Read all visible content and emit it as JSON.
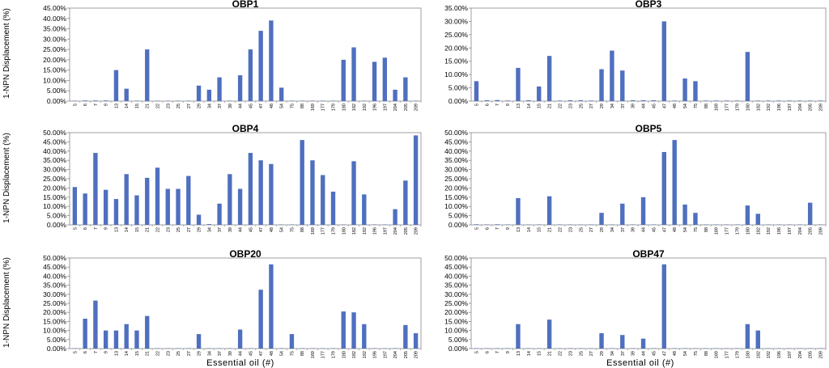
{
  "figure": {
    "ylabel": "1-NPN Displacement (%)",
    "xlabel": "Essential oil (#)",
    "bar_color": "#4F6FBF"
  },
  "chart_data": [
    {
      "type": "bar",
      "title": "OBP1",
      "ylim": [
        0,
        0.45
      ],
      "yticks": [
        "0.00%",
        "5.00%",
        "10.00%",
        "15.00%",
        "20.00%",
        "25.00%",
        "30.00%",
        "35.00%",
        "40.00%",
        "45.00%"
      ],
      "categories": [
        "5",
        "6",
        "7",
        "9",
        "13",
        "14",
        "15",
        "21",
        "22",
        "23",
        "25",
        "27",
        "29",
        "34",
        "37",
        "39",
        "44",
        "45",
        "47",
        "48",
        "54",
        "75",
        "88",
        "169",
        "177",
        "179",
        "180",
        "182",
        "192",
        "196",
        "197",
        "204",
        "205",
        "209"
      ],
      "values": [
        0.002,
        0.003,
        0.003,
        0.003,
        0.15,
        0.06,
        0.002,
        0.25,
        0.002,
        0.002,
        0.002,
        0.002,
        0.075,
        0.055,
        0.115,
        0.002,
        0.125,
        0.25,
        0.34,
        0.39,
        0.065,
        0.002,
        0.002,
        0.002,
        0.002,
        0.002,
        0.2,
        0.26,
        0.002,
        0.19,
        0.21,
        0.055,
        0.115,
        0.002
      ],
      "grid": false
    },
    {
      "type": "bar",
      "title": "OBP3",
      "ylim": [
        0,
        0.35
      ],
      "yticks": [
        "0.00%",
        "5.00%",
        "10.00%",
        "15.00%",
        "20.00%",
        "25.00%",
        "30.00%",
        "35.00%"
      ],
      "categories": [
        "5",
        "6",
        "7",
        "9",
        "13",
        "14",
        "15",
        "21",
        "22",
        "23",
        "25",
        "27",
        "29",
        "34",
        "37",
        "39",
        "44",
        "45",
        "47",
        "48",
        "54",
        "75",
        "88",
        "169",
        "177",
        "179",
        "180",
        "182",
        "192",
        "196",
        "197",
        "204",
        "205",
        "209"
      ],
      "values": [
        0.075,
        0.003,
        0.004,
        0.002,
        0.125,
        0.003,
        0.055,
        0.17,
        0.002,
        0.003,
        0.003,
        0.002,
        0.12,
        0.19,
        0.115,
        0.003,
        0.003,
        0.003,
        0.3,
        0.002,
        0.085,
        0.075,
        0.002,
        0.002,
        0.002,
        0.002,
        0.185,
        0.002,
        0.002,
        0.002,
        0.002,
        0.002,
        0.002,
        0.002
      ],
      "grid": false
    },
    {
      "type": "bar",
      "title": "OBP4",
      "ylim": [
        0,
        0.5
      ],
      "yticks": [
        "0.00%",
        "5.00%",
        "10.00%",
        "15.00%",
        "20.00%",
        "25.00%",
        "30.00%",
        "35.00%",
        "40.00%",
        "45.00%",
        "50.00%"
      ],
      "categories": [
        "5",
        "6",
        "7",
        "9",
        "13",
        "14",
        "15",
        "21",
        "22",
        "23",
        "25",
        "27",
        "29",
        "34",
        "37",
        "39",
        "44",
        "45",
        "47",
        "48",
        "54",
        "75",
        "88",
        "169",
        "177",
        "179",
        "180",
        "182",
        "192",
        "196",
        "197",
        "204",
        "205",
        "209"
      ],
      "values": [
        0.205,
        0.17,
        0.39,
        0.19,
        0.14,
        0.275,
        0.16,
        0.255,
        0.31,
        0.195,
        0.195,
        0.265,
        0.055,
        0.004,
        0.115,
        0.275,
        0.195,
        0.39,
        0.35,
        0.33,
        0.002,
        0.002,
        0.46,
        0.35,
        0.27,
        0.18,
        0.002,
        0.345,
        0.165,
        0.002,
        0.002,
        0.085,
        0.24,
        0.485
      ],
      "grid": false
    },
    {
      "type": "bar",
      "title": "OBP5",
      "ylim": [
        0,
        0.5
      ],
      "yticks": [
        "0.00%",
        "5.00%",
        "10.00%",
        "15.00%",
        "20.00%",
        "25.00%",
        "30.00%",
        "35.00%",
        "40.00%",
        "45.00%",
        "50.00%"
      ],
      "categories": [
        "5",
        "6",
        "7",
        "9",
        "13",
        "14",
        "15",
        "21",
        "22",
        "23",
        "25",
        "27",
        "29",
        "34",
        "37",
        "39",
        "44",
        "45",
        "47",
        "48",
        "54",
        "75",
        "88",
        "169",
        "177",
        "179",
        "180",
        "182",
        "192",
        "196",
        "197",
        "204",
        "205",
        "209"
      ],
      "values": [
        0.003,
        0.002,
        0.003,
        0.002,
        0.145,
        0.002,
        0.002,
        0.155,
        0.002,
        0.002,
        0.002,
        0.002,
        0.065,
        0.002,
        0.115,
        0.002,
        0.15,
        0.002,
        0.395,
        0.46,
        0.11,
        0.065,
        0.002,
        0.002,
        0.002,
        0.002,
        0.105,
        0.06,
        0.002,
        0.002,
        0.002,
        0.002,
        0.12,
        0.002
      ],
      "grid": false
    },
    {
      "type": "bar",
      "title": "OBP20",
      "ylim": [
        0,
        0.5
      ],
      "yticks": [
        "0.00%",
        "5.00%",
        "10.00%",
        "15.00%",
        "20.00%",
        "25.00%",
        "30.00%",
        "35.00%",
        "40.00%",
        "45.00%",
        "50.00%"
      ],
      "categories": [
        "5",
        "6",
        "7",
        "9",
        "13",
        "14",
        "15",
        "21",
        "22",
        "23",
        "25",
        "27",
        "29",
        "34",
        "37",
        "39",
        "44",
        "45",
        "47",
        "48",
        "54",
        "75",
        "88",
        "169",
        "177",
        "179",
        "180",
        "182",
        "192",
        "196",
        "197",
        "204",
        "205",
        "209"
      ],
      "values": [
        0.002,
        0.165,
        0.265,
        0.1,
        0.1,
        0.135,
        0.1,
        0.18,
        0.002,
        0.002,
        0.002,
        0.002,
        0.08,
        0.002,
        0.002,
        0.002,
        0.105,
        0.002,
        0.325,
        0.465,
        0.002,
        0.08,
        0.002,
        0.002,
        0.002,
        0.002,
        0.205,
        0.2,
        0.135,
        0.002,
        0.002,
        0.002,
        0.13,
        0.085
      ],
      "grid": false
    },
    {
      "type": "bar",
      "title": "OBP47",
      "ylim": [
        0,
        0.5
      ],
      "yticks": [
        "0.00%",
        "5.00%",
        "10.00%",
        "15.00%",
        "20.00%",
        "25.00%",
        "30.00%",
        "35.00%",
        "40.00%",
        "45.00%",
        "50.00%"
      ],
      "categories": [
        "5",
        "6",
        "7",
        "9",
        "13",
        "14",
        "15",
        "21",
        "22",
        "23",
        "25",
        "27",
        "29",
        "34",
        "37",
        "39",
        "44",
        "45",
        "47",
        "48",
        "54",
        "75",
        "88",
        "169",
        "177",
        "179",
        "180",
        "182",
        "192",
        "196",
        "197",
        "204",
        "205",
        "209"
      ],
      "values": [
        0.002,
        0.002,
        0.002,
        0.002,
        0.135,
        0.002,
        0.002,
        0.16,
        0.002,
        0.002,
        0.002,
        0.002,
        0.085,
        0.002,
        0.075,
        0.002,
        0.055,
        0.002,
        0.465,
        0.002,
        0.002,
        0.002,
        0.002,
        0.002,
        0.002,
        0.002,
        0.135,
        0.1,
        0.002,
        0.002,
        0.002,
        0.002,
        0.002,
        0.002
      ],
      "grid": false
    }
  ]
}
